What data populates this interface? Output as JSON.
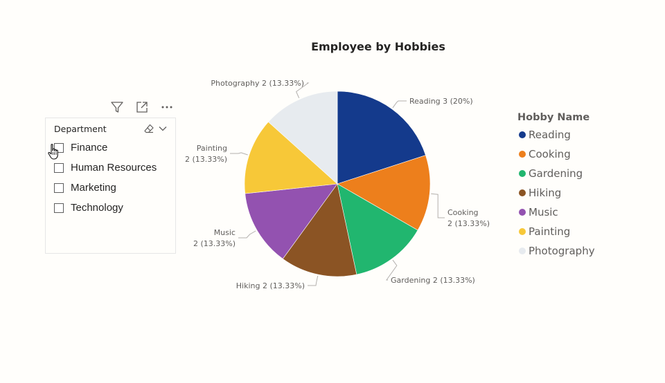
{
  "slicer": {
    "title": "Department",
    "items": [
      {
        "label": "Finance",
        "checked": false
      },
      {
        "label": "Human Resources",
        "checked": false
      },
      {
        "label": "Marketing",
        "checked": false
      },
      {
        "label": "Technology",
        "checked": false
      }
    ],
    "toolbar_icons": [
      "filter-icon",
      "focus-mode-icon",
      "more-options-icon"
    ],
    "header_icons": [
      "eraser-icon",
      "chevron-down-icon"
    ]
  },
  "legend": {
    "title": "Hobby Name",
    "items": [
      {
        "label": "Reading",
        "color": "#143a8c"
      },
      {
        "label": "Cooking",
        "color": "#ed7f1c"
      },
      {
        "label": "Gardening",
        "color": "#21b66f"
      },
      {
        "label": "Hiking",
        "color": "#8b5424"
      },
      {
        "label": "Music",
        "color": "#9352b0"
      },
      {
        "label": "Painting",
        "color": "#f7c838"
      },
      {
        "label": "Photography",
        "color": "#e7ebef"
      }
    ]
  },
  "chart_data": {
    "type": "pie",
    "title": "Employee by Hobbies",
    "categories": [
      "Reading",
      "Cooking",
      "Gardening",
      "Hiking",
      "Music",
      "Painting",
      "Photography"
    ],
    "values": [
      3,
      2,
      2,
      2,
      2,
      2,
      2
    ],
    "percentages": [
      "20%",
      "13.33%",
      "13.33%",
      "13.33%",
      "13.33%",
      "13.33%",
      "13.33%"
    ],
    "colors": [
      "#143a8c",
      "#ed7f1c",
      "#21b66f",
      "#8b5424",
      "#9352b0",
      "#f7c838",
      "#e7ebef"
    ],
    "data_labels": [
      [
        "Reading 3 (20%)"
      ],
      [
        "Cooking",
        "2 (13.33%)"
      ],
      [
        "Gardening 2 (13.33%)"
      ],
      [
        "Hiking 2 (13.33%)"
      ],
      [
        "Music",
        "2 (13.33%)"
      ],
      [
        "Painting",
        "2 (13.33%)"
      ],
      [
        "Photography 2 (13.33%)"
      ]
    ],
    "legend_placement": "right"
  }
}
